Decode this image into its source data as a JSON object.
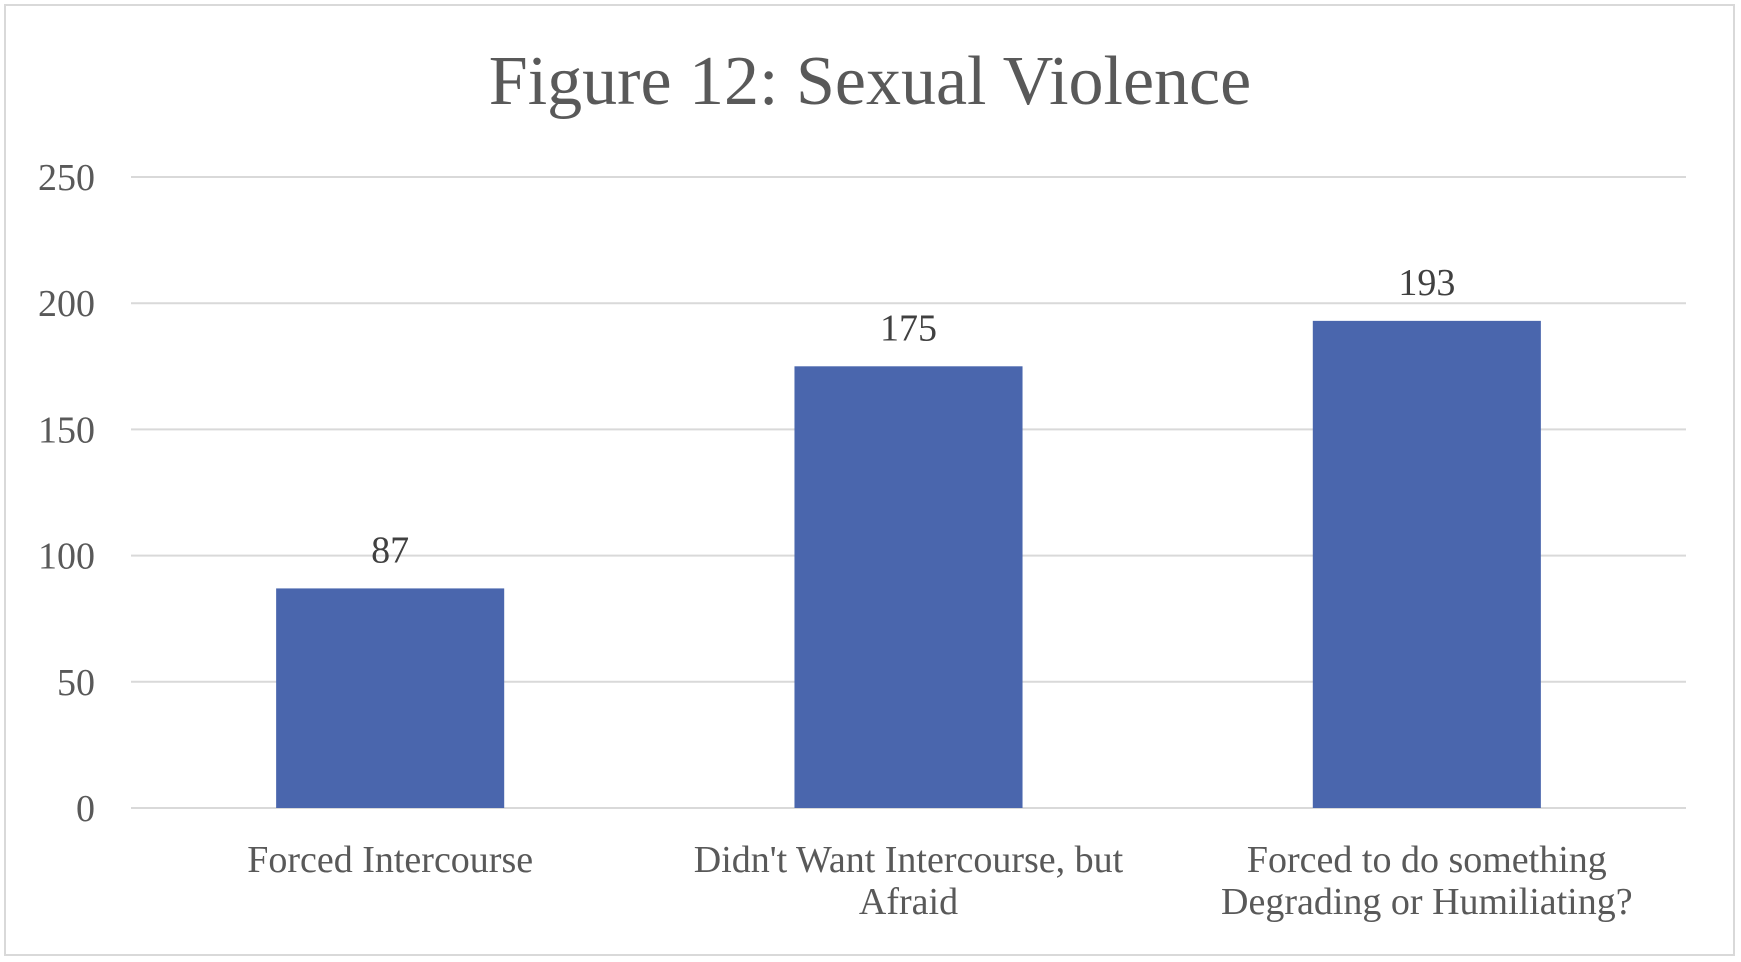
{
  "chart_data": {
    "type": "bar",
    "title": "Figure 12: Sexual Violence",
    "xlabel": "",
    "ylabel": "",
    "categories": [
      [
        "Forced Intercourse"
      ],
      [
        "Didn't Want Intercourse, but",
        "Afraid"
      ],
      [
        "Forced to do something",
        "Degrading or Humiliating?"
      ]
    ],
    "values": [
      87,
      175,
      193
    ],
    "ylim": [
      0,
      250
    ],
    "yticks": [
      0,
      50,
      100,
      150,
      200,
      250
    ],
    "grid": true,
    "legend": "none",
    "data_labels": true,
    "colors": {
      "bar": "#4a66ad",
      "grid": "#d9d9d9",
      "text": "#595959",
      "label": "#404040",
      "frame": "#d9d9d9"
    }
  }
}
